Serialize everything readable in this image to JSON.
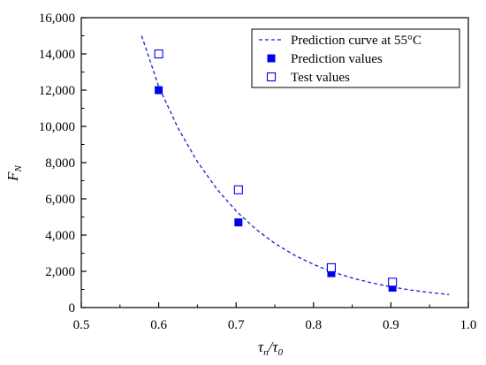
{
  "chart_data": {
    "type": "scatter",
    "xlabel": {
      "main1": "τ",
      "sub1": "n",
      "sep": "/",
      "main2": "τ",
      "sub2": "0"
    },
    "ylabel": {
      "main": "F",
      "sub": "N"
    },
    "xlim": [
      0.5,
      1.0
    ],
    "ylim": [
      0,
      16000
    ],
    "x_ticks": [
      0.5,
      0.6,
      0.7,
      0.8,
      0.9,
      1.0
    ],
    "x_tick_labels": [
      "0.5",
      "0.6",
      "0.7",
      "0.8",
      "0.9",
      "1.0"
    ],
    "y_ticks": [
      0,
      2000,
      4000,
      6000,
      8000,
      10000,
      12000,
      14000,
      16000
    ],
    "y_tick_labels": [
      "0",
      "2,000",
      "4,000",
      "6,000",
      "8,000",
      "10,000",
      "12,000",
      "14,000",
      "16,000"
    ],
    "grid": false,
    "legend_position": "top-right",
    "series": [
      {
        "name": "Prediction curve at 55°C",
        "kind": "line",
        "style": "dashed",
        "color": "#1a1ad6",
        "x": [
          0.578,
          0.6,
          0.625,
          0.65,
          0.675,
          0.7,
          0.725,
          0.75,
          0.775,
          0.8,
          0.825,
          0.85,
          0.875,
          0.9,
          0.925,
          0.95,
          0.975
        ],
        "y": [
          15000,
          12200,
          9900,
          8050,
          6550,
          5330,
          4340,
          3540,
          2900,
          2380,
          1960,
          1630,
          1360,
          1140,
          970,
          830,
          720
        ]
      },
      {
        "name": "Prediction values",
        "kind": "marker",
        "marker": "filled-square",
        "color": "#0000ee",
        "x": [
          0.6,
          0.703,
          0.823,
          0.902
        ],
        "y": [
          12000,
          4700,
          1900,
          1100
        ]
      },
      {
        "name": "Test values",
        "kind": "marker",
        "marker": "hollow-square",
        "color": "#0000ee",
        "x": [
          0.6,
          0.703,
          0.823,
          0.902
        ],
        "y": [
          14000,
          6500,
          2200,
          1400
        ]
      }
    ]
  }
}
